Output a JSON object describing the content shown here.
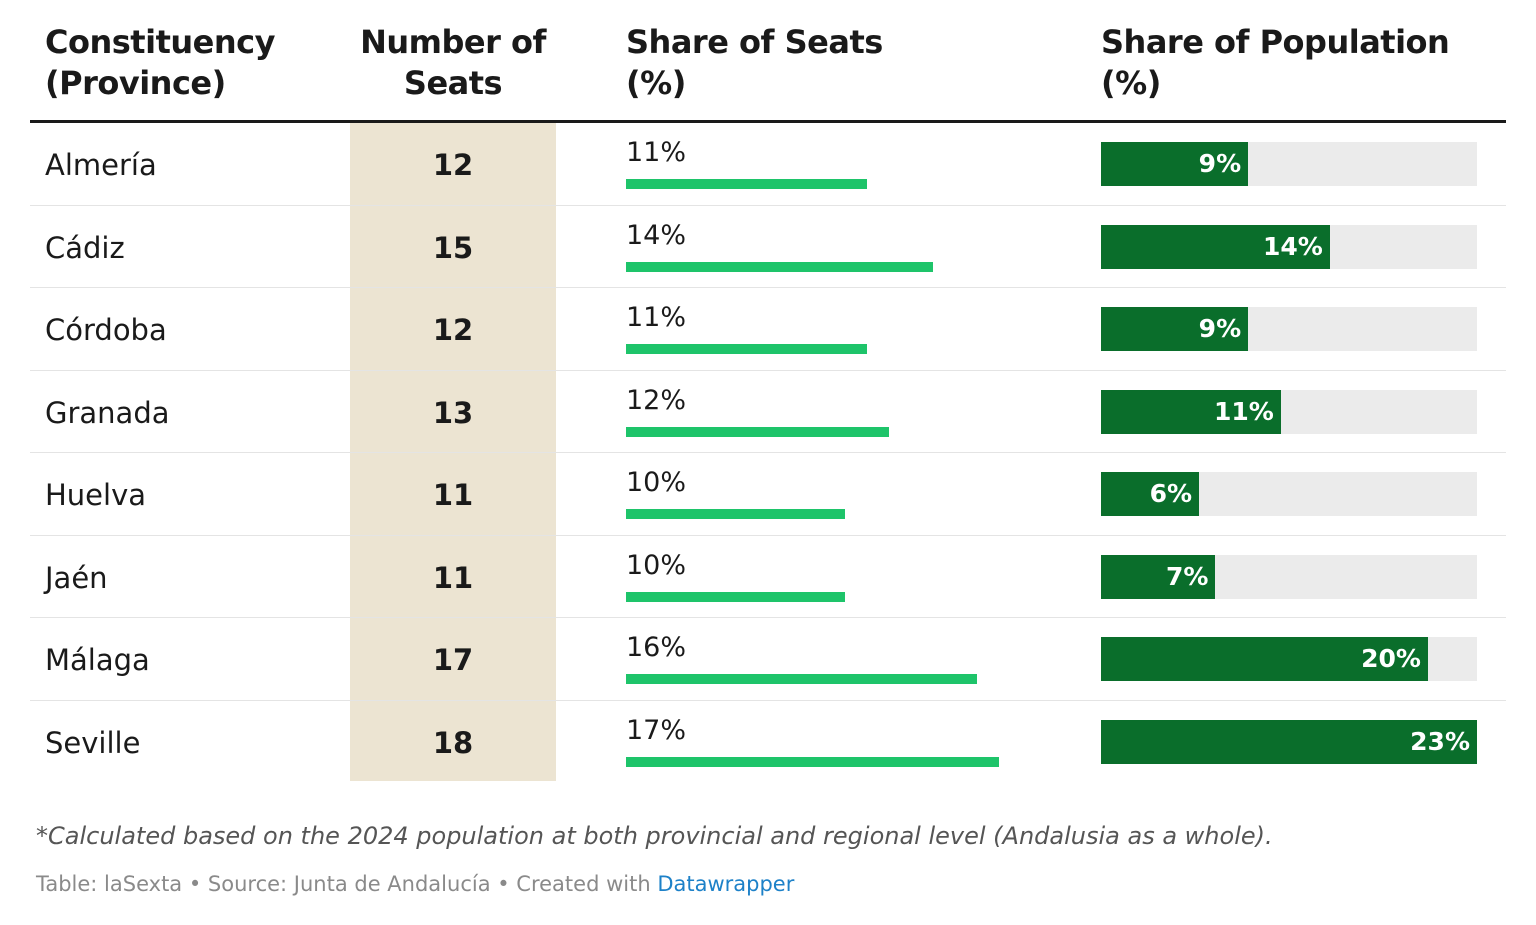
{
  "chart_data": {
    "type": "table",
    "columns": [
      {
        "line1": "Constituency",
        "line2": "(Province)"
      },
      {
        "line1": "Number of",
        "line2": "Seats"
      },
      {
        "line1": "Share of Seats",
        "line2": "(%)"
      },
      {
        "line1": "Share of Population",
        "line2": "(%)"
      }
    ],
    "rows": [
      {
        "province": "Almería",
        "seats": 12,
        "seat_share": 11,
        "seat_share_label": "11%",
        "pop_share": 9,
        "pop_share_label": "9%"
      },
      {
        "province": "Cádiz",
        "seats": 15,
        "seat_share": 14,
        "seat_share_label": "14%",
        "pop_share": 14,
        "pop_share_label": "14%"
      },
      {
        "province": "Córdoba",
        "seats": 12,
        "seat_share": 11,
        "seat_share_label": "11%",
        "pop_share": 9,
        "pop_share_label": "9%"
      },
      {
        "province": "Granada",
        "seats": 13,
        "seat_share": 12,
        "seat_share_label": "12%",
        "pop_share": 11,
        "pop_share_label": "11%"
      },
      {
        "province": "Huelva",
        "seats": 11,
        "seat_share": 10,
        "seat_share_label": "10%",
        "pop_share": 6,
        "pop_share_label": "6%"
      },
      {
        "province": "Jaén",
        "seats": 11,
        "seat_share": 10,
        "seat_share_label": "10%",
        "pop_share": 7,
        "pop_share_label": "7%"
      },
      {
        "province": "Málaga",
        "seats": 17,
        "seat_share": 16,
        "seat_share_label": "16%",
        "pop_share": 20,
        "pop_share_label": "20%"
      },
      {
        "province": "Seville",
        "seats": 18,
        "seat_share": 17,
        "seat_share_label": "17%",
        "pop_share": 23,
        "pop_share_label": "23%"
      }
    ],
    "seat_share_max": 17,
    "pop_share_max": 23,
    "colors": {
      "seat_bar": "#1ec46a",
      "pop_bar": "#0a6e2b",
      "pop_track": "#ebebeb",
      "seats_column_bg": "#ece4d2"
    }
  },
  "footnote": "*Calculated based on the 2024 population at both provincial and regional level (Andalusia as a whole).",
  "credit": {
    "prefix": "Table: laSexta • Source: Junta de Andalucía • Created with ",
    "link": "Datawrapper"
  }
}
